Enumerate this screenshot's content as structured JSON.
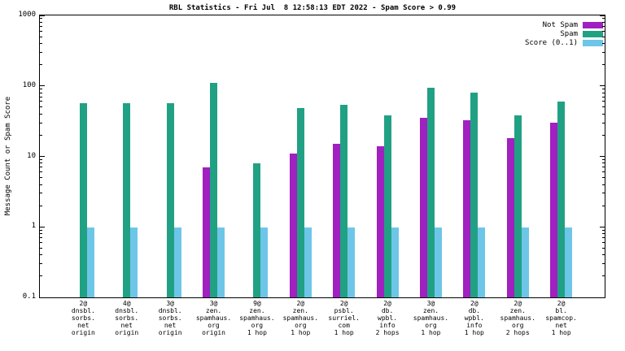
{
  "title": "RBL Statistics - Fri Jul  8 12:58:13 EDT 2022 - Spam Score > 0.99",
  "ylabel": "Message Count or Spam Score",
  "legend": [
    {
      "label": "Not Spam",
      "color": "#a020c0"
    },
    {
      "label": "Spam",
      "color": "#21a183"
    },
    {
      "label": "Score (0..1)",
      "color": "#6dc6e7"
    }
  ],
  "chart_data": {
    "type": "bar",
    "scale": "log",
    "ylim": [
      0.1,
      1000
    ],
    "yticks": [
      "0.1",
      "1",
      "10",
      "100",
      "1000"
    ],
    "ytick_values": [
      0.1,
      1,
      10,
      100,
      1000
    ],
    "grid": false,
    "legend_position": "top-right",
    "categories": [
      [
        "2@",
        "dnsbl.",
        "sorbs.",
        "net",
        "origin"
      ],
      [
        "4@",
        "dnsbl.",
        "sorbs.",
        "net",
        "origin"
      ],
      [
        "3@",
        "dnsbl.",
        "sorbs.",
        "net",
        "origin"
      ],
      [
        "3@",
        "zen.",
        "spamhaus.",
        "org",
        "origin"
      ],
      [
        "9@",
        "zen.",
        "spamhaus.",
        "org",
        "1 hop"
      ],
      [
        "2@",
        "zen.",
        "spamhaus.",
        "org",
        "1 hop"
      ],
      [
        "2@",
        "psbl.",
        "surriel.",
        "com",
        "1 hop"
      ],
      [
        "2@",
        "db.",
        "wpbl.",
        "info",
        "2 hops"
      ],
      [
        "3@",
        "zen.",
        "spamhaus.",
        "org",
        "1 hop"
      ],
      [
        "2@",
        "db.",
        "wpbl.",
        "info",
        "1 hop"
      ],
      [
        "2@",
        "zen.",
        "spamhaus.",
        "org",
        "2 hops"
      ],
      [
        "2@",
        "bl.",
        "spamcop.",
        "net",
        "1 hop"
      ]
    ],
    "series": [
      {
        "name": "Not Spam",
        "color": "#a020c0",
        "values": [
          null,
          null,
          null,
          7,
          null,
          11,
          15,
          14,
          35,
          33,
          18,
          30
        ]
      },
      {
        "name": "Spam",
        "color": "#21a183",
        "values": [
          57,
          57,
          57,
          110,
          8,
          48,
          54,
          38,
          95,
          80,
          38,
          60
        ]
      },
      {
        "name": "Score (0..1)",
        "color": "#6dc6e7",
        "values": [
          0.97,
          0.97,
          0.97,
          0.97,
          0.97,
          0.97,
          0.97,
          0.97,
          0.97,
          0.97,
          0.97,
          0.97
        ]
      }
    ]
  }
}
